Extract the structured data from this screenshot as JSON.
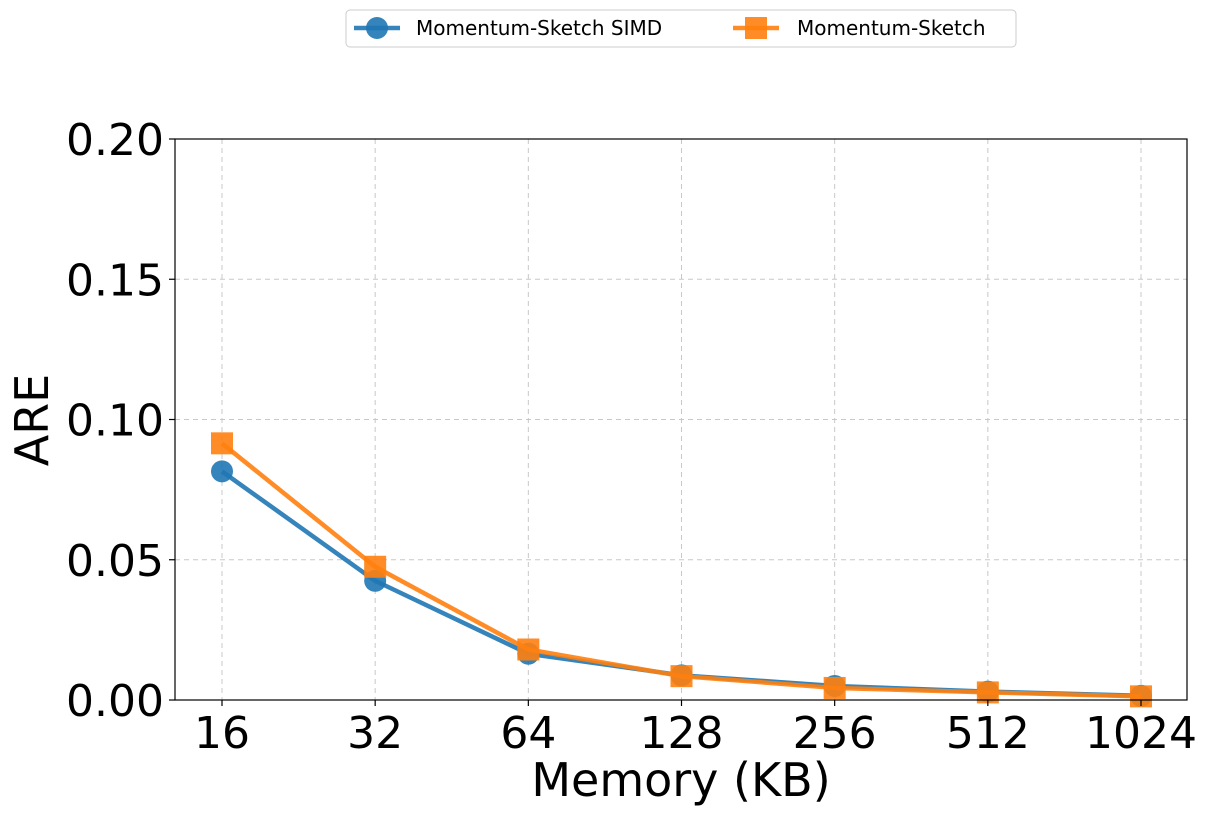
{
  "chart_data": {
    "type": "line",
    "xlabel": "Memory (KB)",
    "ylabel": "ARE",
    "categories": [
      "16",
      "32",
      "64",
      "128",
      "256",
      "512",
      "1024"
    ],
    "ylim": [
      0,
      0.2
    ],
    "yticks": [
      "0.00",
      "0.05",
      "0.10",
      "0.15",
      "0.20"
    ],
    "grid": true,
    "legend_position": "top-center",
    "series": [
      {
        "name": "Momentum-Sketch SIMD",
        "color": "#1f77b4",
        "marker": "circle",
        "values": [
          0.0815,
          0.0425,
          0.0165,
          0.0088,
          0.005,
          0.003,
          0.0015
        ]
      },
      {
        "name": "Momentum-Sketch",
        "color": "#ff7f0e",
        "marker": "square",
        "values": [
          0.0915,
          0.0475,
          0.018,
          0.0085,
          0.0043,
          0.0027,
          0.0013
        ]
      }
    ]
  }
}
